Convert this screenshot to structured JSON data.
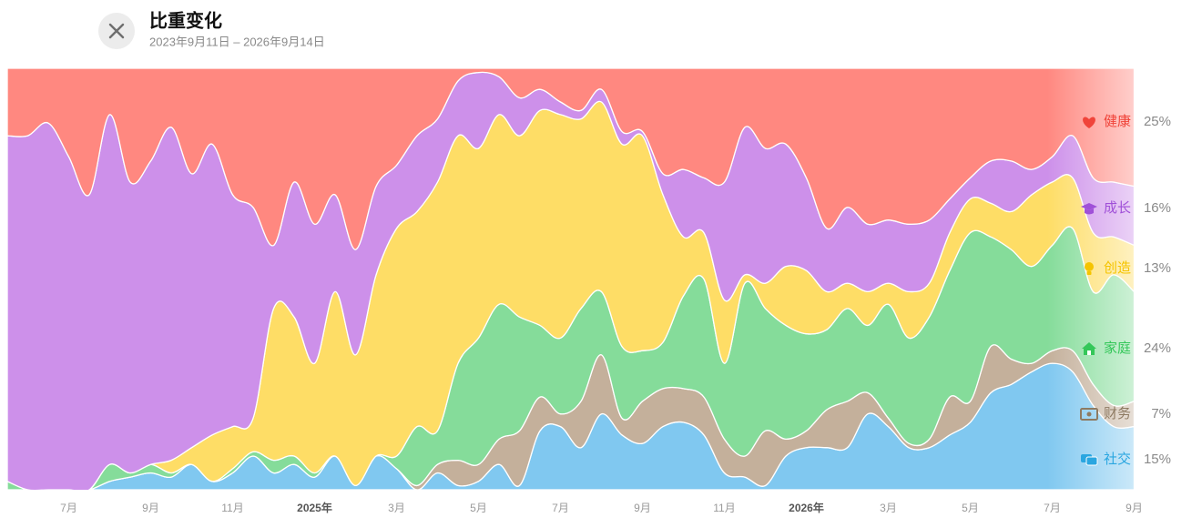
{
  "header": {
    "title": "比重变化",
    "subtitle": "2023年9月11日 – 2026年9月14日"
  },
  "chart_data": {
    "type": "stacked-area",
    "categories": [
      null,
      null,
      null,
      "7月",
      null,
      null,
      null,
      "9月",
      null,
      null,
      null,
      "11月",
      null,
      null,
      null,
      "2025年",
      null,
      null,
      null,
      "3月",
      null,
      null,
      null,
      "5月",
      null,
      null,
      null,
      "7月",
      null,
      null,
      null,
      "9月",
      null,
      null,
      null,
      "11月",
      null,
      null,
      null,
      "2026年",
      null,
      null,
      null,
      "3月",
      null,
      null,
      null,
      "5月",
      null,
      null,
      null,
      "7月",
      null,
      null,
      null,
      "9月"
    ],
    "ylim": [
      0,
      100
    ],
    "series": [
      {
        "name": "社交",
        "share": "15%",
        "color": "#80c8f0",
        "label_color": "#2aa6e0",
        "values": [
          0,
          0,
          0,
          0,
          0,
          2,
          3,
          4,
          3,
          6,
          2,
          4,
          8,
          4,
          6,
          3,
          8,
          1,
          8,
          5,
          0,
          4,
          1,
          2,
          6,
          1,
          14,
          15,
          10,
          18,
          13,
          11,
          15,
          16,
          13,
          4,
          3,
          1,
          8,
          10,
          10,
          10,
          18,
          15,
          10,
          10,
          13,
          16,
          23,
          25,
          28,
          30,
          28,
          20,
          15,
          15
        ]
      },
      {
        "name": "财务",
        "share": "7%",
        "color": "#c4b09b",
        "label_color": "#8e7b63",
        "values": [
          0,
          0,
          0,
          0,
          0,
          0,
          0,
          0,
          0,
          0,
          0,
          0,
          0,
          0,
          0,
          0,
          0,
          0,
          0,
          0,
          1,
          2,
          6,
          4,
          6,
          13,
          8,
          3,
          11,
          14,
          4,
          10,
          9,
          8,
          9,
          8,
          5,
          13,
          4,
          4,
          9,
          11,
          5,
          2,
          1,
          2,
          9,
          5,
          11,
          6,
          2,
          3,
          5,
          5,
          5,
          6
        ]
      },
      {
        "name": "家庭",
        "share": "24%",
        "color": "#85dc9a",
        "label_color": "#34c759",
        "values": [
          2,
          0,
          0,
          0,
          0,
          4,
          1,
          2,
          1,
          0,
          0,
          1,
          1,
          3,
          2,
          1,
          0,
          0,
          0,
          3,
          14,
          8,
          23,
          30,
          32,
          27,
          17,
          18,
          22,
          15,
          17,
          12,
          11,
          22,
          28,
          18,
          41,
          29,
          27,
          23,
          19,
          22,
          16,
          27,
          25,
          29,
          30,
          40,
          26,
          26,
          23,
          25,
          29,
          22,
          31,
          26
        ]
      },
      {
        "name": "创造",
        "share": "13%",
        "color": "#fedd66",
        "label_color": "#f5c400",
        "values": [
          0,
          0,
          0,
          0,
          0,
          0,
          0,
          0,
          3,
          4,
          11,
          10,
          8,
          36,
          33,
          26,
          39,
          31,
          43,
          54,
          51,
          59,
          54,
          45,
          45,
          43,
          51,
          53,
          45,
          45,
          48,
          51,
          35,
          14,
          11,
          15,
          2,
          6,
          14,
          15,
          9,
          6,
          8,
          5,
          11,
          8,
          9,
          8,
          8,
          9,
          17,
          15,
          12,
          14,
          9,
          11
        ]
      },
      {
        "name": "成长",
        "share": "16%",
        "color": "#cd90ea",
        "label_color": "#a050d8",
        "values": [
          82,
          84,
          87,
          79,
          70,
          83,
          69,
          72,
          79,
          65,
          69,
          55,
          50,
          15,
          32,
          33,
          23,
          25,
          21,
          15,
          18,
          15,
          13,
          18,
          9,
          9,
          5,
          3,
          2,
          3,
          3,
          1,
          5,
          16,
          13,
          28,
          35,
          32,
          29,
          22,
          15,
          18,
          16,
          15,
          16,
          15,
          8,
          5,
          10,
          12,
          6,
          6,
          10,
          13,
          13,
          14
        ]
      },
      {
        "name": "健康",
        "share": "25%",
        "color": "#ff8880",
        "label_color": "#f0443a",
        "values": [
          16,
          16,
          13,
          21,
          30,
          11,
          27,
          22,
          14,
          25,
          18,
          30,
          33,
          42,
          27,
          37,
          30,
          43,
          28,
          23,
          16,
          12,
          3,
          1,
          2,
          7,
          5,
          8,
          10,
          5,
          15,
          15,
          25,
          24,
          26,
          27,
          14,
          19,
          18,
          26,
          38,
          33,
          37,
          36,
          37,
          36,
          31,
          26,
          22,
          22,
          24,
          21,
          16,
          26,
          27,
          28
        ]
      }
    ]
  }
}
